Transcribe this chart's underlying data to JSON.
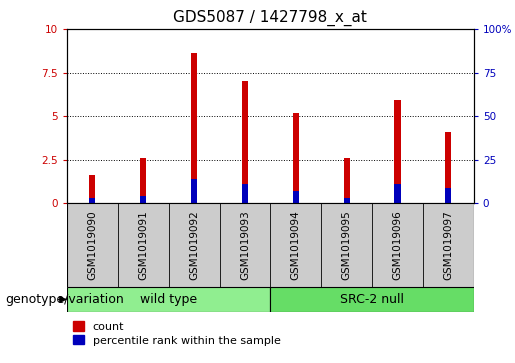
{
  "title": "GDS5087 / 1427798_x_at",
  "samples": [
    "GSM1019090",
    "GSM1019091",
    "GSM1019092",
    "GSM1019093",
    "GSM1019094",
    "GSM1019095",
    "GSM1019096",
    "GSM1019097"
  ],
  "count_values": [
    1.6,
    2.6,
    8.6,
    7.0,
    5.2,
    2.6,
    5.9,
    4.1
  ],
  "percentile_values": [
    3.0,
    4.0,
    14.0,
    11.0,
    7.0,
    3.0,
    11.0,
    9.0
  ],
  "groups": [
    {
      "label": "wild type",
      "start": 0,
      "end": 4,
      "color": "#90EE90"
    },
    {
      "label": "SRC-2 null",
      "start": 4,
      "end": 8,
      "color": "#66DD66"
    }
  ],
  "ylim_left": [
    0,
    10
  ],
  "ylim_right": [
    0,
    100
  ],
  "yticks_left": [
    0,
    2.5,
    5.0,
    7.5,
    10
  ],
  "yticks_right": [
    0,
    25,
    50,
    75,
    100
  ],
  "bar_color_red": "#CC0000",
  "bar_color_blue": "#0000BB",
  "bar_width": 0.12,
  "grid_color": "black",
  "bg_color": "#CCCCCC",
  "title_fontsize": 11,
  "tick_label_fontsize": 7.5,
  "legend_fontsize": 8,
  "group_label_fontsize": 9,
  "genotype_label": "genotype/variation"
}
